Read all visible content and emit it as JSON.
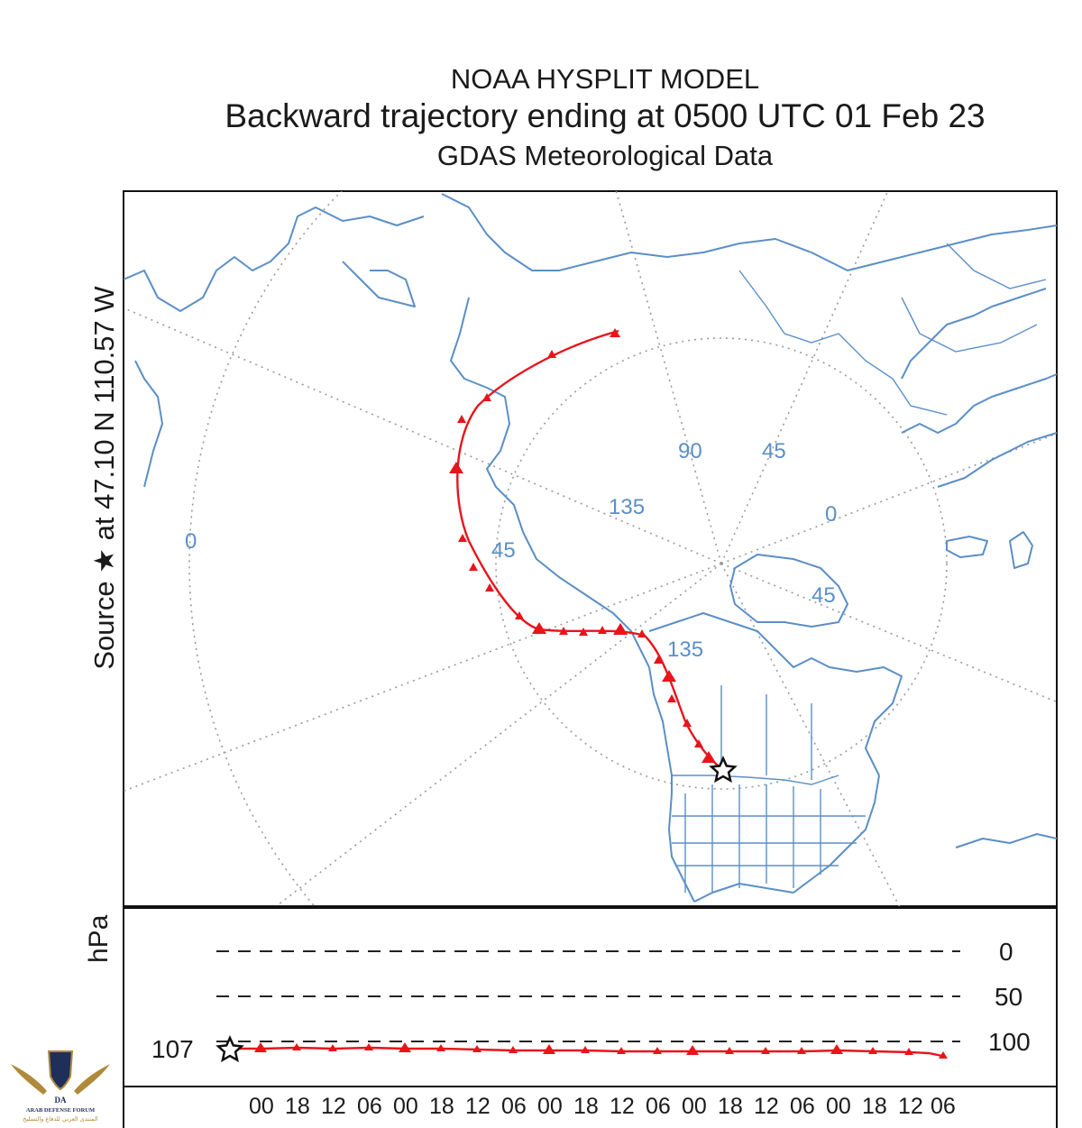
{
  "header": {
    "line1": "NOAA HYSPLIT MODEL",
    "line2": "Backward trajectory ending at 0500 UTC 01 Feb 23",
    "line3": "GDAS Meteorological Data"
  },
  "source_label": "Source ★ at 47.10 N 110.57 W",
  "map": {
    "grid_labels": [
      "0",
      "90",
      "45",
      "135",
      "0",
      "45",
      "45",
      "135"
    ],
    "coast_color": "#5b8fc7",
    "grid_color": "#9a9a9a",
    "trajectory_color": "#e8141b",
    "source_marker": "black-star"
  },
  "vertical_panel": {
    "axis_label": "hPa",
    "levels": [
      "0",
      "50",
      "100"
    ],
    "start_value": "107",
    "time_ticks": [
      "00",
      "18",
      "12",
      "06",
      "00",
      "18",
      "12",
      "06",
      "00",
      "18",
      "12",
      "06",
      "00",
      "18",
      "12",
      "06",
      "00",
      "18",
      "12",
      "06"
    ]
  },
  "watermark": {
    "name": "arab-defense-forum-logo",
    "text_en": "ARAB DEFENSE FORUM",
    "text_ar": "المنتدى العربي للدفاع والتسليح",
    "monogram": "DA"
  }
}
